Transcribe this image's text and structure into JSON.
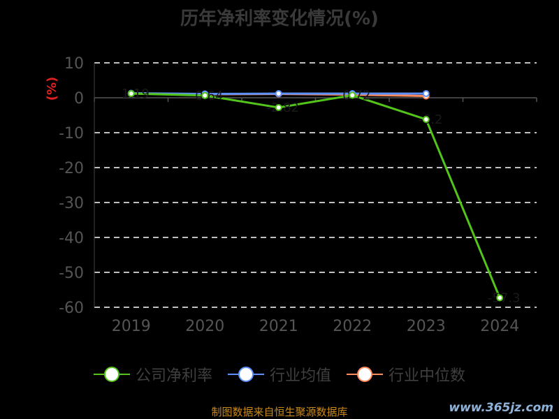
{
  "title": "历年净利率变化情况(%)",
  "footer": "制图数据来自恒生聚源数据库",
  "watermark": "www.365jz.com",
  "chart_data": {
    "type": "line",
    "ylabel": "(%)",
    "categories": [
      "2019",
      "2020",
      "2021",
      "2022",
      "2023",
      "2024"
    ],
    "ylim": [
      -60,
      10
    ],
    "yticks": [
      10,
      0,
      -10,
      -20,
      -30,
      -40,
      -50,
      -60
    ],
    "grid": true,
    "legend_position": "bottom",
    "series": [
      {
        "name": "公司净利率",
        "color": "#52c41a",
        "values": [
          1.2,
          0.64,
          -2.8,
          0.72,
          -6.2,
          -57.3
        ],
        "labels": [
          "1.19",
          "0.64",
          "-2.82",
          "0.72",
          "-6.2",
          "-57.3"
        ]
      },
      {
        "name": "行业均值",
        "color": "#5b8ff9",
        "values": [
          1.3,
          1.1,
          1.2,
          1.2,
          1.2,
          null
        ]
      },
      {
        "name": "行业中位数",
        "color": "#ff8a5c",
        "values": [
          1.2,
          1.0,
          1.1,
          0.9,
          0.5,
          null
        ]
      }
    ]
  }
}
